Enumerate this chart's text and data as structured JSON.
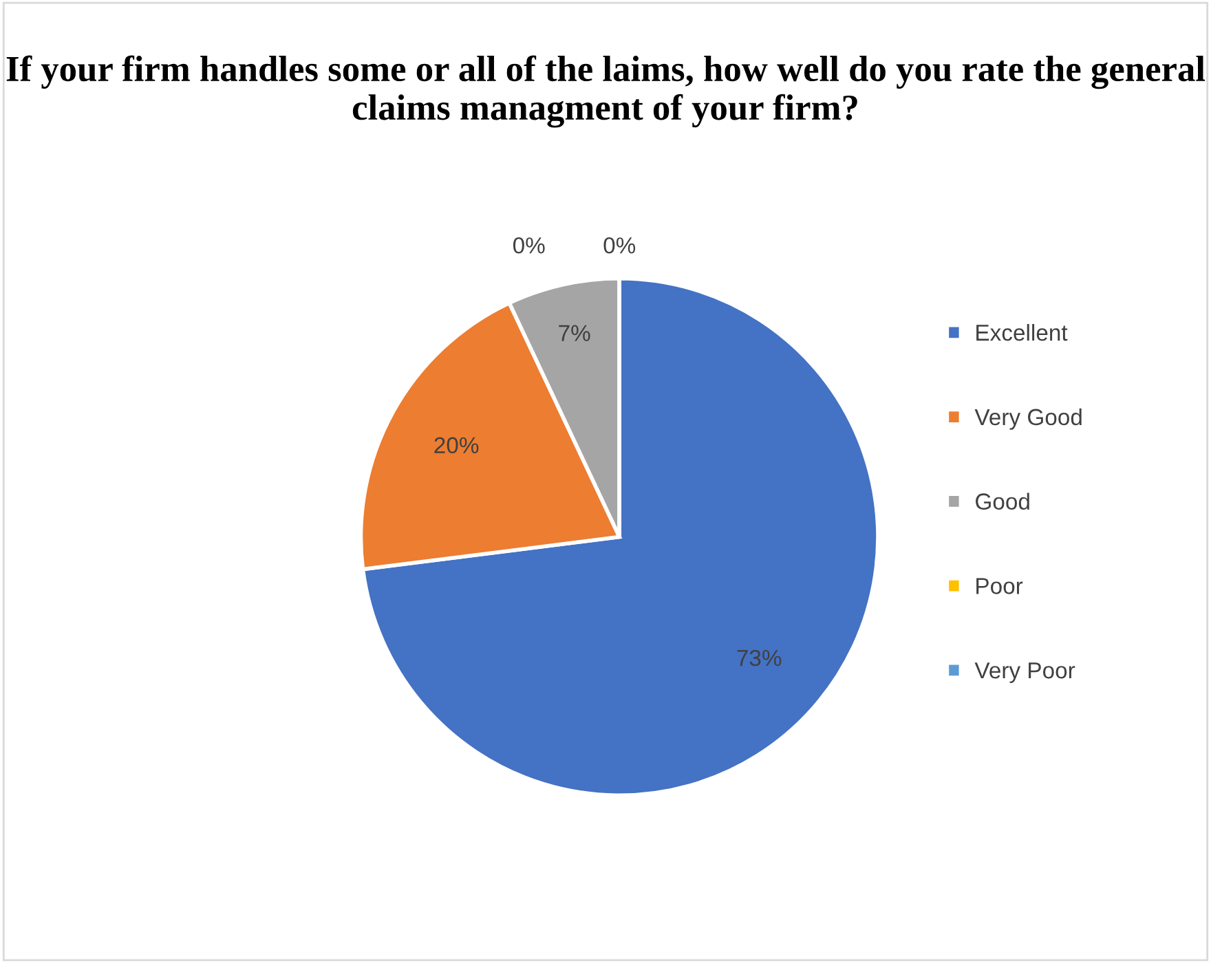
{
  "chart_data": {
    "type": "pie",
    "title": "If your firm handles some or all of the laims, how well do you rate the general claims managment of your firm?",
    "categories": [
      "Excellent",
      "Very Good",
      "Good",
      "Poor",
      "Very Poor"
    ],
    "values": [
      73,
      20,
      7,
      0,
      0
    ],
    "colors": [
      "#4472c4",
      "#ed7d31",
      "#a5a5a5",
      "#ffc000",
      "#5b9bd5"
    ],
    "value_labels": [
      "73%",
      "20%",
      "7%",
      "0%",
      "0%"
    ],
    "legend": "right"
  }
}
